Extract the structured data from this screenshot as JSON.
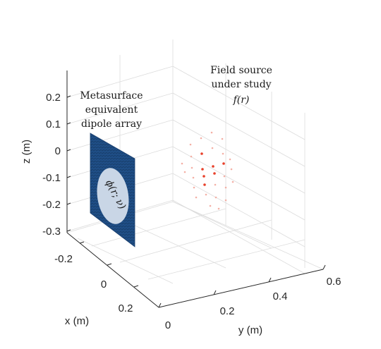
{
  "axes": {
    "x": {
      "label": "x (m)",
      "ticks": [
        "-0.2",
        "0",
        "0.2"
      ]
    },
    "y": {
      "label": "y (m)",
      "ticks": [
        "0",
        "0.2",
        "0.4",
        "0.6"
      ]
    },
    "z": {
      "label": "z (m)",
      "ticks": [
        "0.2",
        "0.1",
        "0",
        "-0.1",
        "-0.2",
        "-0.3"
      ]
    }
  },
  "annotations": {
    "metasurface": [
      "Metasurface",
      "equivalent",
      "dipole array"
    ],
    "field_source": [
      "Field source",
      "under study",
      "f(r)"
    ],
    "phi_label": "ϕ(r; ν)"
  },
  "colors": {
    "panel": "#1f4e86",
    "disk": "#c9d6e6",
    "source_strong": "#e8402a",
    "source_faint": "#f4b0a6"
  }
}
